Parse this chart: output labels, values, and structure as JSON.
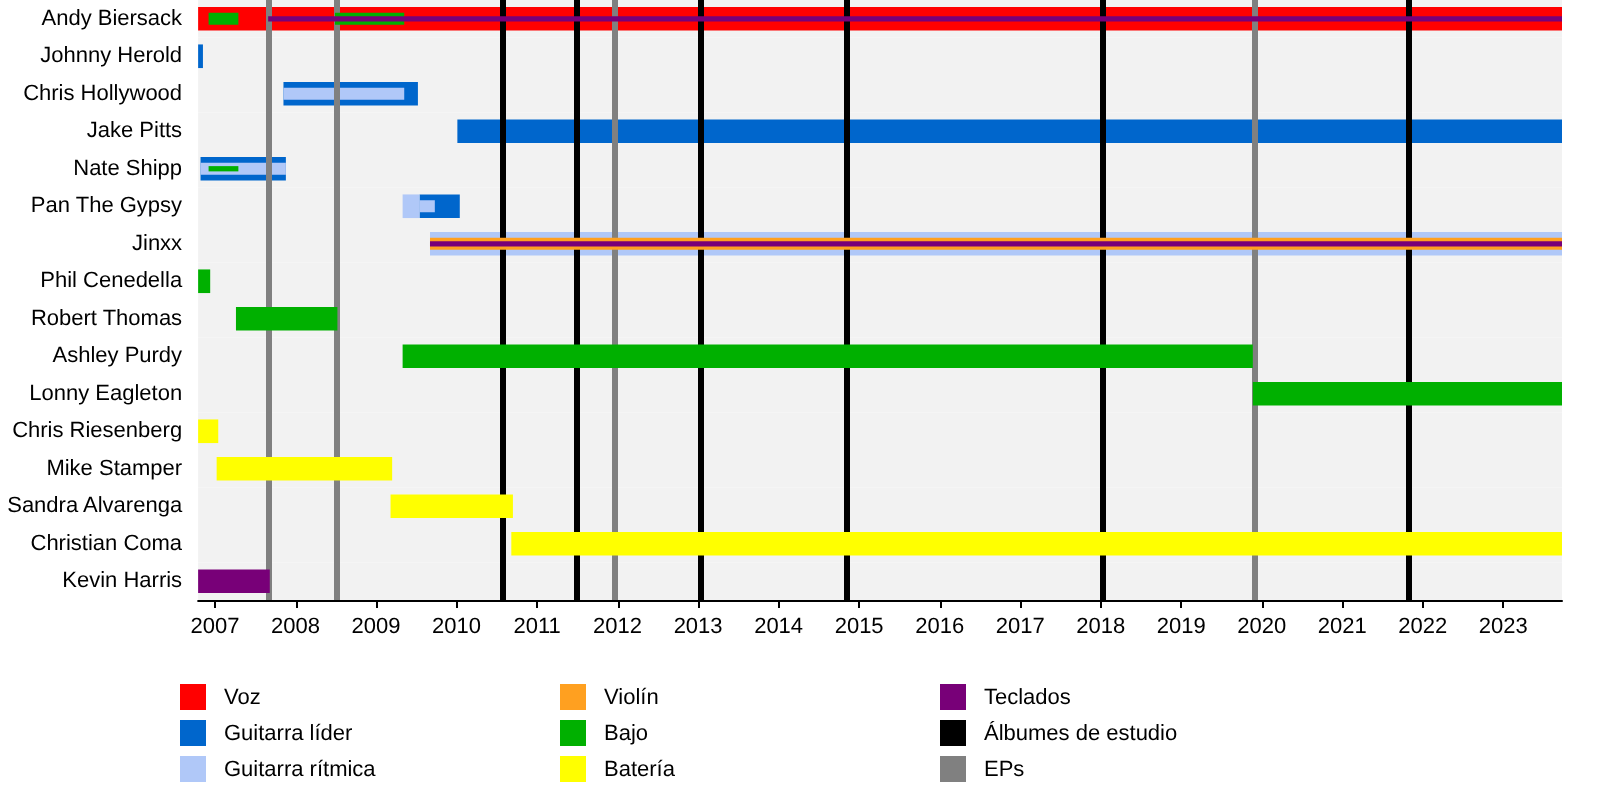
{
  "chart_data": {
    "type": "bar",
    "orientation": "horizontal",
    "legend": "bottom",
    "categories": [
      "Andy Biersack",
      "Johnny Herold",
      "Chris Hollywood",
      "Jake Pitts",
      "Nate Shipp",
      "Pan The Gypsy",
      "Jinxx",
      "Phil Cenedella",
      "Robert Thomas",
      "Ashley Purdy",
      "Lonny Eagleton",
      "Chris Riesenberg",
      "Mike Stamper",
      "Sandra Alvarenga",
      "Christian Coma",
      "Kevin Harris"
    ],
    "xlim": [
      2006.79,
      2023.73
    ],
    "xticks": [
      2007,
      2008,
      2009,
      2010,
      2011,
      2012,
      2013,
      2014,
      2015,
      2016,
      2017,
      2018,
      2019,
      2020,
      2021,
      2022,
      2023
    ],
    "series": [
      {
        "name": "Voz",
        "color": "#ff0000",
        "base": [
          2006.79,
          null,
          null,
          null,
          null,
          null,
          null,
          null,
          null,
          null,
          null,
          null,
          null,
          null,
          null,
          null
        ],
        "values": [
          16.94,
          null,
          null,
          null,
          null,
          null,
          null,
          null,
          null,
          null,
          null,
          null,
          null,
          null,
          null,
          null
        ]
      },
      {
        "name": "Guitarra líder",
        "color": "#0066cc",
        "base": [
          null,
          2006.79,
          2007.85,
          2010.01,
          2006.82,
          2009.54,
          null,
          null,
          null,
          null,
          null,
          null,
          null,
          null,
          null,
          null
        ],
        "values": [
          null,
          0.06,
          1.67,
          13.72,
          1.06,
          0.5,
          null,
          null,
          null,
          null,
          null,
          null,
          null,
          null,
          null,
          null
        ]
      },
      {
        "name": "Guitarra rítmica",
        "color": "#b0c8f8",
        "base": [
          null,
          null,
          2007.85,
          null,
          2006.82,
          2009.33,
          2009.67,
          null,
          null,
          null,
          null,
          null,
          null,
          null,
          null,
          null
        ],
        "values": [
          null,
          null,
          1.5,
          null,
          1.06,
          0.21,
          14.06,
          null,
          null,
          null,
          null,
          null,
          null,
          null,
          null,
          null
        ]
      },
      {
        "color": "#b0c8f8",
        "base": [
          null,
          null,
          null,
          null,
          null,
          2009.54,
          null,
          null,
          null,
          null,
          null,
          null,
          null,
          null,
          null,
          null
        ],
        "values": [
          null,
          null,
          null,
          null,
          null,
          0.19,
          null,
          null,
          null,
          null,
          null,
          null,
          null,
          null,
          null,
          null
        ]
      },
      {
        "name": "Violín",
        "color": "#ffa020",
        "base": [
          null,
          null,
          null,
          null,
          null,
          null,
          2009.67,
          null,
          null,
          null,
          null,
          null,
          null,
          null,
          null,
          null
        ],
        "values": [
          null,
          null,
          null,
          null,
          null,
          null,
          14.06,
          null,
          null,
          null,
          null,
          null,
          null,
          null,
          null,
          null
        ]
      },
      {
        "name": "Bajo",
        "color": "#00b000",
        "base": [
          2006.92,
          null,
          null,
          null,
          2006.92,
          null,
          null,
          2006.79,
          2007.26,
          2009.33,
          2019.89,
          null,
          null,
          null,
          null,
          null
        ],
        "values": [
          0.37,
          null,
          null,
          null,
          0.37,
          null,
          null,
          0.15,
          1.26,
          10.56,
          3.84,
          null,
          null,
          null,
          null,
          null
        ]
      },
      {
        "color": "#00b000",
        "base": [
          2008.49,
          null,
          null,
          null,
          null,
          null,
          null,
          null,
          null,
          null,
          null,
          null,
          null,
          null,
          null,
          null
        ],
        "values": [
          0.86,
          null,
          null,
          null,
          null,
          null,
          null,
          null,
          null,
          null,
          null,
          null,
          null,
          null,
          null,
          null
        ]
      },
      {
        "name": "Batería",
        "color": "#ffff00",
        "base": [
          null,
          null,
          null,
          null,
          null,
          null,
          null,
          null,
          null,
          null,
          null,
          2006.79,
          2007.02,
          2009.18,
          2010.68,
          null
        ],
        "values": [
          null,
          null,
          null,
          null,
          null,
          null,
          null,
          null,
          null,
          null,
          null,
          0.25,
          2.18,
          1.52,
          13.05,
          null
        ]
      },
      {
        "name": "Teclados",
        "color": "#780078",
        "base": [
          2007.66,
          null,
          null,
          null,
          null,
          null,
          2009.67,
          null,
          null,
          null,
          null,
          null,
          null,
          null,
          null,
          2006.79
        ],
        "values": [
          16.07,
          null,
          null,
          null,
          null,
          null,
          14.06,
          null,
          null,
          null,
          null,
          null,
          null,
          null,
          null,
          0.89
        ]
      }
    ],
    "ref_lines": [
      {
        "axis": "x",
        "value": 2010.57,
        "label": "Álbumes de estudio",
        "color": "#000000"
      },
      {
        "axis": "x",
        "value": 2011.48,
        "color": "#000000"
      },
      {
        "axis": "x",
        "value": 2013.04,
        "color": "#000000"
      },
      {
        "axis": "x",
        "value": 2014.84,
        "color": "#000000"
      },
      {
        "axis": "x",
        "value": 2018.03,
        "color": "#000000"
      },
      {
        "axis": "x",
        "value": 2021.82,
        "color": "#000000"
      },
      {
        "axis": "x",
        "value": 2007.66,
        "label": "EPs",
        "color": "#808080"
      },
      {
        "axis": "x",
        "value": 2008.5,
        "color": "#808080"
      },
      {
        "axis": "x",
        "value": 2011.96,
        "color": "#808080"
      },
      {
        "axis": "x",
        "value": 2019.92,
        "color": "#808080"
      }
    ]
  }
}
